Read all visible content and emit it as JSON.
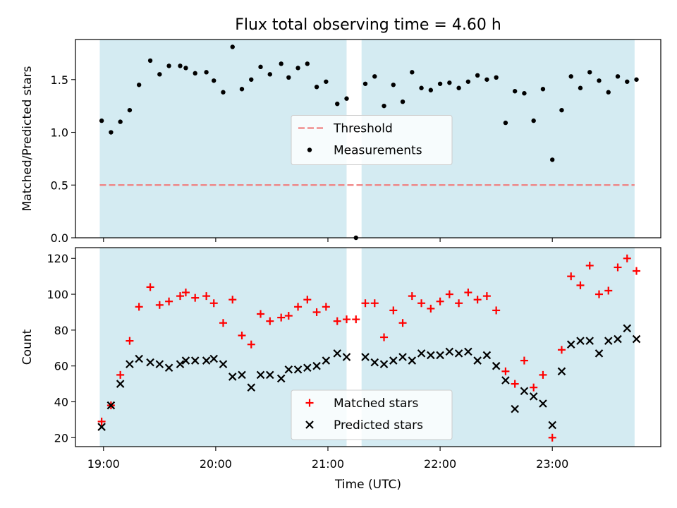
{
  "chart_data": {
    "title": "Flux total observing time = 4.60 h",
    "xlabel": "Time (UTC)",
    "xticks": [
      "19:00",
      "20:00",
      "21:00",
      "22:00",
      "23:00"
    ],
    "xlim": [
      "18:45",
      "23:58"
    ],
    "shaded_intervals": [
      [
        "18:58",
        "21:10"
      ],
      [
        "21:18",
        "23:44"
      ]
    ],
    "panels": [
      {
        "type": "scatter",
        "ylabel": "Matched/Predicted stars",
        "ylim": [
          0,
          1.88
        ],
        "yticks": [
          "0.0",
          "0.5",
          "1.0",
          "1.5"
        ],
        "legend_position": "center",
        "threshold": {
          "name": "Threshold",
          "value": 0.5,
          "color": "#f08080"
        },
        "series": [
          {
            "name": "Measurements",
            "color": "#000000",
            "marker": "dot",
            "points": [
              [
                "18:59",
                1.11
              ],
              [
                "19:04",
                1.0
              ],
              [
                "19:09",
                1.1
              ],
              [
                "19:14",
                1.21
              ],
              [
                "19:19",
                1.45
              ],
              [
                "19:25",
                1.68
              ],
              [
                "19:30",
                1.55
              ],
              [
                "19:35",
                1.63
              ],
              [
                "19:41",
                1.63
              ],
              [
                "19:44",
                1.61
              ],
              [
                "19:49",
                1.56
              ],
              [
                "19:55",
                1.57
              ],
              [
                "19:59",
                1.49
              ],
              [
                "20:04",
                1.38
              ],
              [
                "20:09",
                1.81
              ],
              [
                "20:14",
                1.41
              ],
              [
                "20:19",
                1.5
              ],
              [
                "20:24",
                1.62
              ],
              [
                "20:29",
                1.55
              ],
              [
                "20:35",
                1.65
              ],
              [
                "20:39",
                1.52
              ],
              [
                "20:44",
                1.61
              ],
              [
                "20:49",
                1.65
              ],
              [
                "20:54",
                1.43
              ],
              [
                "20:59",
                1.48
              ],
              [
                "21:05",
                1.27
              ],
              [
                "21:10",
                1.32
              ],
              [
                "21:15",
                0.0
              ],
              [
                "21:20",
                1.46
              ],
              [
                "21:25",
                1.53
              ],
              [
                "21:30",
                1.25
              ],
              [
                "21:35",
                1.45
              ],
              [
                "21:40",
                1.29
              ],
              [
                "21:45",
                1.57
              ],
              [
                "21:50",
                1.42
              ],
              [
                "21:55",
                1.4
              ],
              [
                "22:00",
                1.46
              ],
              [
                "22:05",
                1.47
              ],
              [
                "22:10",
                1.42
              ],
              [
                "22:15",
                1.48
              ],
              [
                "22:20",
                1.54
              ],
              [
                "22:25",
                1.5
              ],
              [
                "22:30",
                1.52
              ],
              [
                "22:35",
                1.09
              ],
              [
                "22:40",
                1.39
              ],
              [
                "22:45",
                1.37
              ],
              [
                "22:50",
                1.11
              ],
              [
                "22:55",
                1.41
              ],
              [
                "23:00",
                0.74
              ],
              [
                "23:05",
                1.21
              ],
              [
                "23:10",
                1.53
              ],
              [
                "23:15",
                1.42
              ],
              [
                "23:20",
                1.57
              ],
              [
                "23:25",
                1.49
              ],
              [
                "23:30",
                1.38
              ],
              [
                "23:35",
                1.53
              ],
              [
                "23:40",
                1.48
              ],
              [
                "23:45",
                1.5
              ]
            ]
          }
        ]
      },
      {
        "type": "scatter",
        "ylabel": "Count",
        "ylim": [
          15,
          126
        ],
        "yticks": [
          "20",
          "40",
          "60",
          "80",
          "100",
          "120"
        ],
        "legend_position": "lower center",
        "series": [
          {
            "name": "Matched stars",
            "color": "#ff0000",
            "marker": "plus",
            "points": [
              [
                "18:59",
                29
              ],
              [
                "19:04",
                38
              ],
              [
                "19:09",
                55
              ],
              [
                "19:14",
                74
              ],
              [
                "19:19",
                93
              ],
              [
                "19:25",
                104
              ],
              [
                "19:30",
                94
              ],
              [
                "19:35",
                96
              ],
              [
                "19:41",
                99
              ],
              [
                "19:44",
                101
              ],
              [
                "19:49",
                98
              ],
              [
                "19:55",
                99
              ],
              [
                "19:59",
                95
              ],
              [
                "20:04",
                84
              ],
              [
                "20:09",
                97
              ],
              [
                "20:14",
                77
              ],
              [
                "20:19",
                72
              ],
              [
                "20:24",
                89
              ],
              [
                "20:29",
                85
              ],
              [
                "20:35",
                87
              ],
              [
                "20:39",
                88
              ],
              [
                "20:44",
                93
              ],
              [
                "20:49",
                97
              ],
              [
                "20:54",
                90
              ],
              [
                "20:59",
                93
              ],
              [
                "21:05",
                85
              ],
              [
                "21:10",
                86
              ],
              [
                "21:15",
                86
              ],
              [
                "21:20",
                95
              ],
              [
                "21:25",
                95
              ],
              [
                "21:30",
                76
              ],
              [
                "21:35",
                91
              ],
              [
                "21:40",
                84
              ],
              [
                "21:45",
                99
              ],
              [
                "21:50",
                95
              ],
              [
                "21:55",
                92
              ],
              [
                "22:00",
                96
              ],
              [
                "22:05",
                100
              ],
              [
                "22:10",
                95
              ],
              [
                "22:15",
                101
              ],
              [
                "22:20",
                97
              ],
              [
                "22:25",
                99
              ],
              [
                "22:30",
                91
              ],
              [
                "22:35",
                57
              ],
              [
                "22:40",
                50
              ],
              [
                "22:45",
                63
              ],
              [
                "22:50",
                48
              ],
              [
                "22:55",
                55
              ],
              [
                "23:00",
                20
              ],
              [
                "23:05",
                69
              ],
              [
                "23:10",
                110
              ],
              [
                "23:15",
                105
              ],
              [
                "23:20",
                116
              ],
              [
                "23:25",
                100
              ],
              [
                "23:30",
                102
              ],
              [
                "23:35",
                115
              ],
              [
                "23:40",
                120
              ],
              [
                "23:45",
                113
              ]
            ]
          },
          {
            "name": "Predicted stars",
            "color": "#000000",
            "marker": "x",
            "points": [
              [
                "18:59",
                26
              ],
              [
                "19:04",
                38
              ],
              [
                "19:09",
                50
              ],
              [
                "19:14",
                61
              ],
              [
                "19:19",
                64
              ],
              [
                "19:25",
                62
              ],
              [
                "19:30",
                61
              ],
              [
                "19:35",
                59
              ],
              [
                "19:41",
                61
              ],
              [
                "19:44",
                63
              ],
              [
                "19:49",
                63
              ],
              [
                "19:55",
                63
              ],
              [
                "19:59",
                64
              ],
              [
                "20:04",
                61
              ],
              [
                "20:09",
                54
              ],
              [
                "20:14",
                55
              ],
              [
                "20:19",
                48
              ],
              [
                "20:24",
                55
              ],
              [
                "20:29",
                55
              ],
              [
                "20:35",
                53
              ],
              [
                "20:39",
                58
              ],
              [
                "20:44",
                58
              ],
              [
                "20:49",
                59
              ],
              [
                "20:54",
                60
              ],
              [
                "20:59",
                63
              ],
              [
                "21:05",
                67
              ],
              [
                "21:10",
                65
              ],
              [
                "21:20",
                65
              ],
              [
                "21:25",
                62
              ],
              [
                "21:30",
                61
              ],
              [
                "21:35",
                63
              ],
              [
                "21:40",
                65
              ],
              [
                "21:45",
                63
              ],
              [
                "21:50",
                67
              ],
              [
                "21:55",
                66
              ],
              [
                "22:00",
                66
              ],
              [
                "22:05",
                68
              ],
              [
                "22:10",
                67
              ],
              [
                "22:15",
                68
              ],
              [
                "22:20",
                63
              ],
              [
                "22:25",
                66
              ],
              [
                "22:30",
                60
              ],
              [
                "22:35",
                52
              ],
              [
                "22:40",
                36
              ],
              [
                "22:45",
                46
              ],
              [
                "22:50",
                43
              ],
              [
                "22:55",
                39
              ],
              [
                "23:00",
                27
              ],
              [
                "23:05",
                57
              ],
              [
                "23:10",
                72
              ],
              [
                "23:15",
                74
              ],
              [
                "23:20",
                74
              ],
              [
                "23:25",
                67
              ],
              [
                "23:30",
                74
              ],
              [
                "23:35",
                75
              ],
              [
                "23:40",
                81
              ],
              [
                "23:45",
                75
              ]
            ]
          }
        ]
      }
    ],
    "colors": {
      "shade": "#add8e6",
      "axis": "#000000"
    }
  }
}
